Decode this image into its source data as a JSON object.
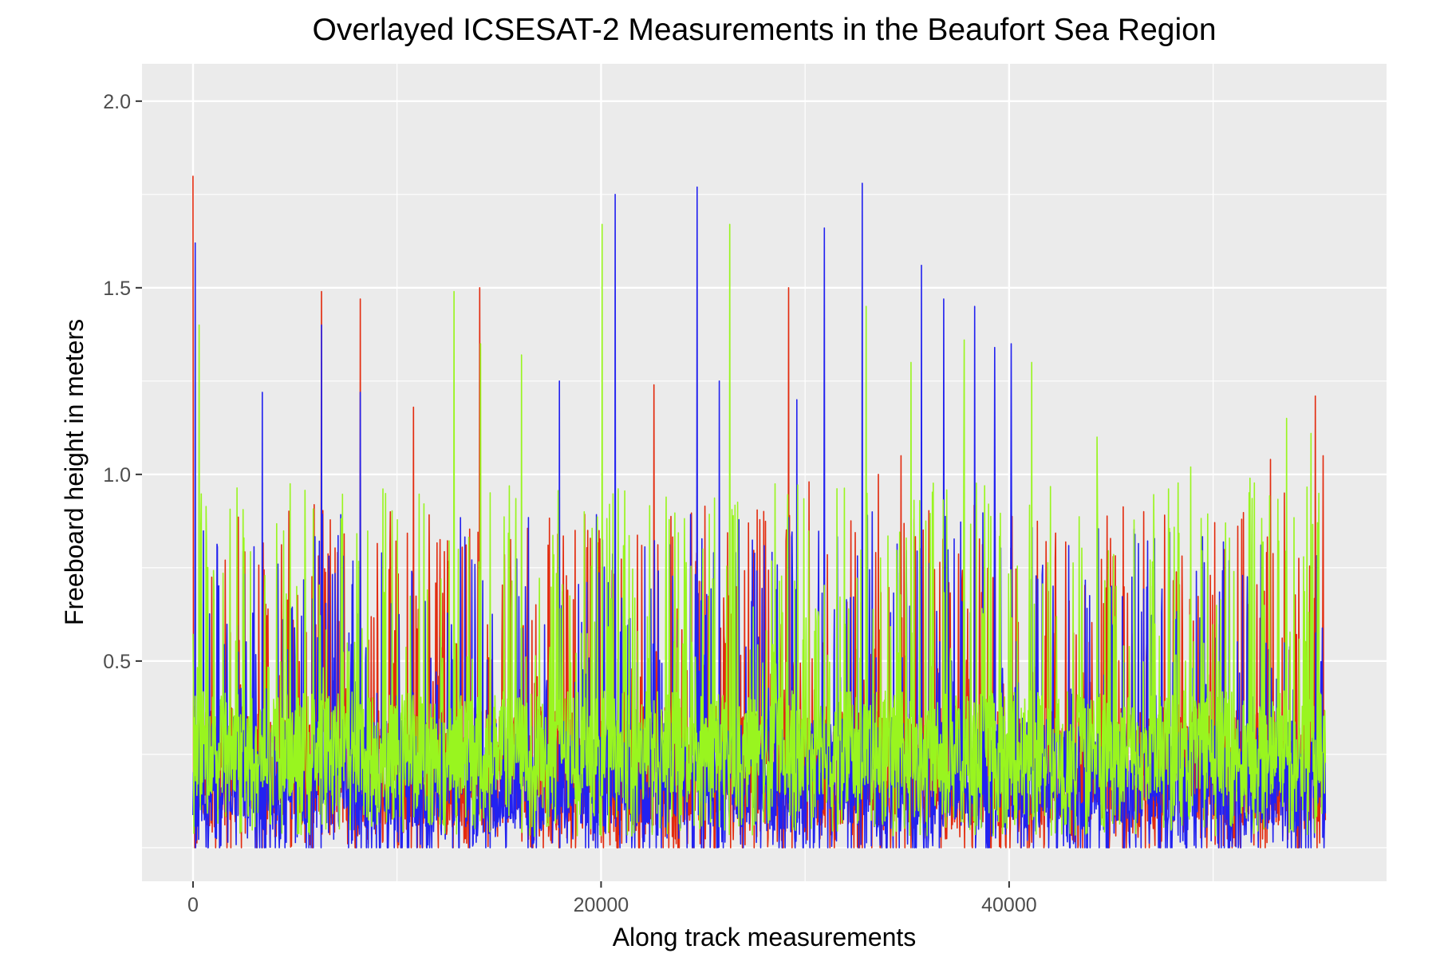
{
  "chart_data": {
    "type": "line",
    "title": "Overlayed ICSESAT-2 Measurements in the Beaufort Sea Region",
    "xlabel": "Along track measurements",
    "ylabel": "Freeboard height in meters",
    "xlim": [
      -2500,
      58500
    ],
    "ylim": [
      -0.09,
      2.1
    ],
    "x_ticks": [
      0,
      20000,
      40000
    ],
    "x_tick_labels": [
      "0",
      "20000",
      "40000"
    ],
    "y_ticks": [
      0.5,
      1.0,
      1.5,
      2.0
    ],
    "y_tick_labels": [
      "0.5",
      "1.0",
      "1.5",
      "2.0"
    ],
    "x_minor_ticks": [
      10000,
      30000,
      50000
    ],
    "y_minor_ticks": [
      0.0,
      0.25,
      0.75,
      1.25,
      1.75
    ],
    "grid": true,
    "background": "#ebebeb",
    "grid_color": "#ffffff",
    "legend": "none",
    "x_max": 55500,
    "series": [
      {
        "color": "#e32b0e",
        "base": 0.22,
        "spread": 0.16,
        "spikes": [
          [
            0,
            1.8
          ],
          [
            6300,
            1.49
          ],
          [
            8200,
            1.47
          ],
          [
            10800,
            1.18
          ],
          [
            14050,
            1.5
          ],
          [
            22600,
            1.24
          ],
          [
            29200,
            1.5
          ],
          [
            30200,
            0.98
          ],
          [
            33600,
            1.0
          ],
          [
            34700,
            1.05
          ],
          [
            45100,
            0.78
          ],
          [
            46600,
            0.9
          ],
          [
            48300,
            0.82
          ],
          [
            51400,
            0.88
          ],
          [
            52800,
            1.04
          ],
          [
            53500,
            0.95
          ],
          [
            55000,
            1.21
          ],
          [
            55400,
            1.05
          ]
        ]
      },
      {
        "color": "#2222f0",
        "base": 0.2,
        "spread": 0.15,
        "spikes": [
          [
            100,
            1.62
          ],
          [
            3400,
            1.22
          ],
          [
            6300,
            1.4
          ],
          [
            8200,
            1.22
          ],
          [
            17950,
            1.25
          ],
          [
            20700,
            1.75
          ],
          [
            24700,
            1.77
          ],
          [
            25800,
            1.25
          ],
          [
            29600,
            1.2
          ],
          [
            30950,
            1.66
          ],
          [
            32800,
            1.78
          ],
          [
            35700,
            1.56
          ],
          [
            36800,
            1.47
          ],
          [
            38300,
            1.45
          ],
          [
            39300,
            1.34
          ],
          [
            40100,
            1.35
          ]
        ]
      },
      {
        "color": "#99f51f",
        "base": 0.28,
        "spread": 0.14,
        "spikes": [
          [
            300,
            1.4
          ],
          [
            12800,
            1.49
          ],
          [
            14100,
            1.35
          ],
          [
            16100,
            1.32
          ],
          [
            20050,
            1.67
          ],
          [
            26300,
            1.67
          ],
          [
            33000,
            1.45
          ],
          [
            35200,
            1.3
          ],
          [
            37800,
            1.36
          ],
          [
            41100,
            1.3
          ],
          [
            44300,
            1.1
          ],
          [
            48900,
            1.02
          ],
          [
            51800,
            0.99
          ],
          [
            53600,
            1.15
          ],
          [
            54800,
            1.11
          ]
        ]
      }
    ]
  }
}
